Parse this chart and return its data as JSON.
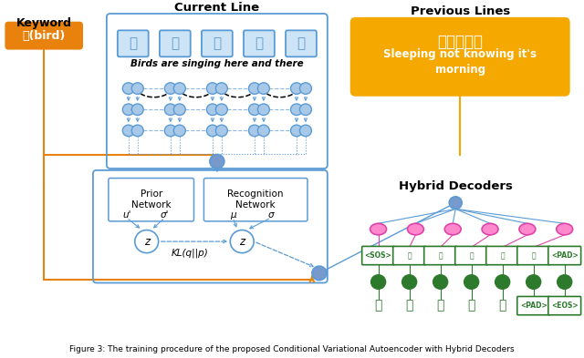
{
  "title": "Figure 3: The training procedure of the proposed Conditional Variational Autoencoder with Hybrid Decoders",
  "keyword_label": "Keyword",
  "keyword_text": "鸟(bird)",
  "current_line_label": "Current Line",
  "current_line_chars": [
    "处",
    "处",
    "闻",
    "噌",
    "鸟"
  ],
  "current_line_translation": "Birds are singing here and there",
  "prev_lines_label": "Previous Lines",
  "prev_lines_chinese": "春眠不觉晓",
  "prev_lines_english": "Sleeping not knowing it's\nmorning",
  "hybrid_decoders_label": "Hybrid Decoders",
  "prior_network_label": "Prior\nNetwork",
  "recognition_network_label": "Recognition\nNetwork",
  "kl_label": "KL(q||p)",
  "sos_label": "<SOS>",
  "pad_label": "<PAD>",
  "eos_label": "<EOS>",
  "pad2_label": "<PAD>",
  "decoder_chars": [
    "处",
    "处",
    "闻",
    "噌",
    "鸟"
  ],
  "decoder_chars2": [
    "处",
    "处",
    "闻",
    "噌",
    "鸟"
  ],
  "orange_color": "#E8820C",
  "steel_blue": "#5b9bd5",
  "node_blue_fill": "#a8c8e8",
  "pink_color": "#FF69B4",
  "dark_green": "#2d7a2d",
  "yellow_box_color": "#F5A800",
  "bg_color": "#FFFFFF"
}
